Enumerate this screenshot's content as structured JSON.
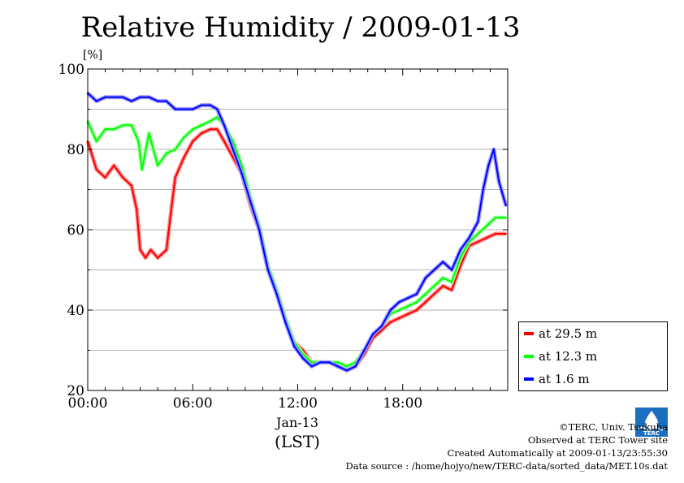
{
  "chart_data": {
    "type": "line",
    "title": "Relative Humidity / 2009-01-13",
    "ylabel": "[%]",
    "xlabel": "(LST)",
    "date_label": "Jan-13",
    "xlim": [
      0,
      24
    ],
    "ylim": [
      20,
      100
    ],
    "y_ticks": [
      20,
      40,
      60,
      80,
      100
    ],
    "x_ticks": [
      0,
      6,
      12,
      18
    ],
    "x_tick_labels": [
      "00:00",
      "06:00",
      "12:00",
      "18:00"
    ],
    "grid": true,
    "legend_position": "right",
    "series": [
      {
        "name": "at 29.5 m",
        "color": "#ff0000",
        "x": [
          0,
          0.5,
          1,
          1.5,
          2,
          2.5,
          2.8,
          3.0,
          3.3,
          3.6,
          4.0,
          4.5,
          4.8,
          5.0,
          5.5,
          6.0,
          6.5,
          7.0,
          7.4,
          7.8,
          8.3,
          8.8,
          9.3,
          9.8,
          10.3,
          10.8,
          11.3,
          11.8,
          12.3,
          12.8,
          13.3,
          13.8,
          14.3,
          14.8,
          15.3,
          15.8,
          16.3,
          16.8,
          17.3,
          17.8,
          18.3,
          18.8,
          19.3,
          19.8,
          20.3,
          20.8,
          21.3,
          21.8,
          22.3,
          22.8,
          23.3,
          23.9
        ],
        "values": [
          82,
          75,
          73,
          76,
          73,
          71,
          65,
          55,
          53,
          55,
          53,
          55,
          66,
          73,
          78,
          82,
          84,
          85,
          85,
          82,
          78,
          74,
          66,
          60,
          50,
          45,
          38,
          32,
          30,
          27,
          27,
          27,
          26,
          25,
          26,
          29,
          33,
          35,
          37,
          38,
          39,
          40,
          42,
          44,
          46,
          45,
          51,
          56,
          57,
          58,
          59,
          59
        ]
      },
      {
        "name": "at 12.3 m",
        "color": "#00ff00",
        "x": [
          0,
          0.5,
          1,
          1.5,
          2,
          2.5,
          2.9,
          3.1,
          3.5,
          4.0,
          4.5,
          5.0,
          5.5,
          6.0,
          6.5,
          7.0,
          7.4,
          7.8,
          8.3,
          8.8,
          9.3,
          9.8,
          10.3,
          10.8,
          11.3,
          11.8,
          12.3,
          12.8,
          13.3,
          13.8,
          14.3,
          14.8,
          15.3,
          15.8,
          16.3,
          16.8,
          17.3,
          17.8,
          18.3,
          18.8,
          19.3,
          19.8,
          20.3,
          20.8,
          21.3,
          21.8,
          22.3,
          22.8,
          23.3,
          23.9
        ],
        "values": [
          87,
          82,
          85,
          85,
          86,
          86,
          82,
          75,
          84,
          76,
          79,
          80,
          83,
          85,
          86,
          87,
          88,
          86,
          82,
          76,
          68,
          61,
          51,
          45,
          38,
          32,
          29,
          27,
          27,
          27,
          27,
          26,
          27,
          30,
          34,
          36,
          39,
          40,
          41,
          42,
          44,
          46,
          48,
          47,
          53,
          57,
          59,
          61,
          63,
          63
        ]
      },
      {
        "name": "at 1.6 m",
        "color": "#0000ff",
        "x": [
          0,
          0.5,
          1,
          1.5,
          2,
          2.5,
          3.0,
          3.5,
          4.0,
          4.5,
          5.0,
          5.5,
          6.0,
          6.5,
          7.0,
          7.4,
          7.8,
          8.3,
          8.8,
          9.3,
          9.8,
          10.3,
          10.8,
          11.3,
          11.8,
          12.3,
          12.8,
          13.3,
          13.8,
          14.3,
          14.8,
          15.3,
          15.8,
          16.3,
          16.8,
          17.3,
          17.8,
          18.3,
          18.8,
          19.3,
          19.8,
          20.3,
          20.8,
          21.3,
          21.8,
          22.3,
          22.6,
          22.9,
          23.2,
          23.5,
          23.9
        ],
        "values": [
          94,
          92,
          93,
          93,
          93,
          92,
          93,
          93,
          92,
          92,
          90,
          90,
          90,
          91,
          91,
          90,
          86,
          80,
          74,
          67,
          60,
          50,
          44,
          37,
          31,
          28,
          26,
          27,
          27,
          26,
          25,
          26,
          30,
          34,
          36,
          40,
          42,
          43,
          44,
          48,
          50,
          52,
          50,
          55,
          58,
          62,
          70,
          76,
          80,
          72,
          66
        ]
      }
    ]
  },
  "credits": {
    "copyright": "©TERC, Univ. Tsukuba",
    "observed": "Observed at TERC Tower site",
    "created": "Created Automatically at 2009-01-13/23:55:30",
    "source": "Data source : /home/hojyo/new/TERC-data/sorted_data/MET.10s.dat"
  },
  "logo_text": "TERC",
  "colors": {
    "grid": "#b0b0b0",
    "axis": "#000000"
  }
}
